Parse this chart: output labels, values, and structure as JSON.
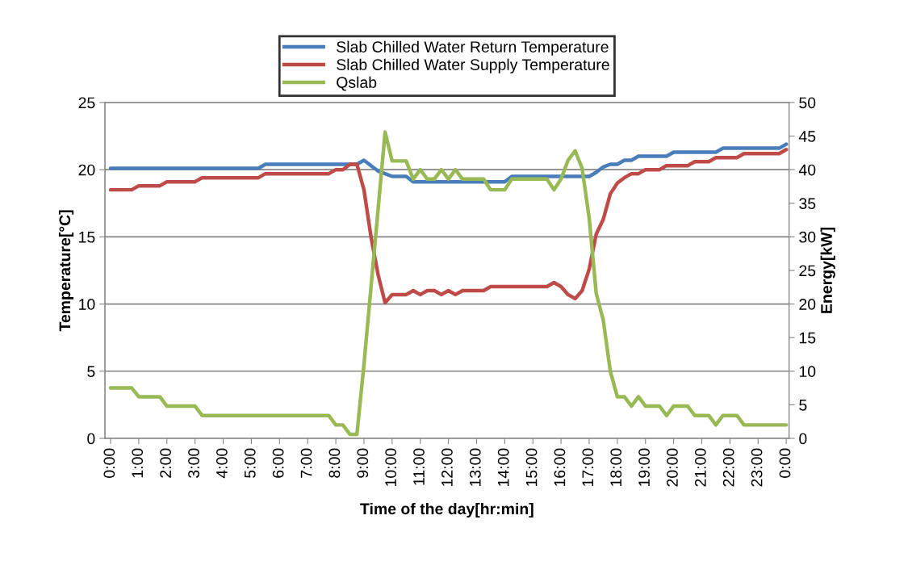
{
  "chart_data": {
    "type": "line",
    "xlabel": "Time of the day[hr:min]",
    "ylabel": "Temperature[°C]",
    "y2label": "Energy[kW]",
    "x": [
      0,
      0.25,
      0.5,
      0.75,
      1,
      1.25,
      1.5,
      1.75,
      2,
      2.25,
      2.5,
      2.75,
      3,
      3.25,
      3.5,
      3.75,
      4,
      4.25,
      4.5,
      4.75,
      5,
      5.25,
      5.5,
      5.75,
      6,
      6.25,
      6.5,
      6.75,
      7,
      7.25,
      7.5,
      7.75,
      8,
      8.25,
      8.5,
      8.75,
      9,
      9.25,
      9.5,
      9.75,
      10,
      10.25,
      10.5,
      10.75,
      11,
      11.25,
      11.5,
      11.75,
      12,
      12.25,
      12.5,
      12.75,
      13,
      13.25,
      13.5,
      13.75,
      14,
      14.25,
      14.5,
      14.75,
      15,
      15.25,
      15.5,
      15.75,
      16,
      16.25,
      16.5,
      16.75,
      17,
      17.25,
      17.5,
      17.75,
      18,
      18.25,
      18.5,
      18.75,
      19,
      19.25,
      19.5,
      19.75,
      20,
      20.25,
      20.5,
      20.75,
      21,
      21.25,
      21.5,
      21.75,
      22,
      22.25,
      22.5,
      22.75,
      23,
      23.25,
      23.5,
      23.75,
      24
    ],
    "series": [
      {
        "name": "Slab Chilled Water Return Temperature",
        "color": "#4a7ebb",
        "values": [
          20.1,
          20.1,
          20.1,
          20.1,
          20.1,
          20.1,
          20.1,
          20.1,
          20.1,
          20.1,
          20.1,
          20.1,
          20.1,
          20.1,
          20.1,
          20.1,
          20.1,
          20.1,
          20.1,
          20.1,
          20.1,
          20.1,
          20.4,
          20.4,
          20.4,
          20.4,
          20.4,
          20.4,
          20.4,
          20.4,
          20.4,
          20.4,
          20.4,
          20.4,
          20.4,
          20.4,
          20.7,
          20.3,
          19.9,
          19.7,
          19.5,
          19.5,
          19.5,
          19.1,
          19.1,
          19.1,
          19.1,
          19.1,
          19.1,
          19.1,
          19.1,
          19.1,
          19.1,
          19.1,
          19.1,
          19.1,
          19.1,
          19.5,
          19.5,
          19.5,
          19.5,
          19.5,
          19.5,
          19.5,
          19.5,
          19.5,
          19.5,
          19.5,
          19.5,
          19.8,
          20.2,
          20.4,
          20.4,
          20.7,
          20.7,
          21.0,
          21.0,
          21.0,
          21.0,
          21.0,
          21.3,
          21.3,
          21.3,
          21.3,
          21.3,
          21.3,
          21.3,
          21.6,
          21.6,
          21.6,
          21.6,
          21.6,
          21.6,
          21.6,
          21.6,
          21.6,
          21.9
        ]
      },
      {
        "name": "Slab Chilled Water Supply Temperature",
        "color": "#be4b48",
        "values": [
          18.5,
          18.5,
          18.5,
          18.5,
          18.8,
          18.8,
          18.8,
          18.8,
          19.1,
          19.1,
          19.1,
          19.1,
          19.1,
          19.4,
          19.4,
          19.4,
          19.4,
          19.4,
          19.4,
          19.4,
          19.4,
          19.4,
          19.7,
          19.7,
          19.7,
          19.7,
          19.7,
          19.7,
          19.7,
          19.7,
          19.7,
          19.7,
          20.0,
          20.0,
          20.4,
          20.4,
          18.5,
          15.0,
          12.2,
          10.1,
          10.7,
          10.7,
          10.7,
          11.0,
          10.7,
          11.0,
          11.0,
          10.7,
          11.0,
          10.7,
          11.0,
          11.0,
          11.0,
          11.0,
          11.3,
          11.3,
          11.3,
          11.3,
          11.3,
          11.3,
          11.3,
          11.3,
          11.3,
          11.6,
          11.3,
          10.7,
          10.4,
          11.0,
          12.6,
          15.2,
          16.3,
          18.2,
          19.0,
          19.4,
          19.7,
          19.7,
          20.0,
          20.0,
          20.0,
          20.3,
          20.3,
          20.3,
          20.3,
          20.6,
          20.6,
          20.6,
          20.9,
          20.9,
          20.9,
          20.9,
          21.2,
          21.2,
          21.2,
          21.2,
          21.2,
          21.2,
          21.5
        ]
      },
      {
        "name": "Qslab",
        "color": "#98b954",
        "axis": "y2",
        "values": [
          7.5,
          7.5,
          7.5,
          7.5,
          6.2,
          6.2,
          6.2,
          6.2,
          4.8,
          4.8,
          4.8,
          4.8,
          4.8,
          3.4,
          3.4,
          3.4,
          3.4,
          3.4,
          3.4,
          3.4,
          3.4,
          3.4,
          3.4,
          3.4,
          3.4,
          3.4,
          3.4,
          3.4,
          3.4,
          3.4,
          3.4,
          3.4,
          2.0,
          2.0,
          0.6,
          0.6,
          11,
          22.5,
          34,
          45.6,
          41.3,
          41.3,
          41.3,
          38.6,
          40.0,
          38.6,
          38.6,
          40.0,
          38.6,
          40.0,
          38.6,
          38.6,
          38.6,
          38.6,
          37.0,
          37.0,
          37.0,
          38.6,
          38.6,
          38.6,
          38.6,
          38.6,
          38.6,
          37.0,
          38.6,
          41.4,
          42.8,
          40.2,
          32.8,
          21.6,
          17.6,
          10.0,
          6.2,
          6.2,
          4.8,
          6.2,
          4.8,
          4.8,
          4.8,
          3.4,
          4.8,
          4.8,
          4.8,
          3.4,
          3.4,
          3.4,
          2.0,
          3.4,
          3.4,
          3.4,
          2.0,
          2.0,
          2.0,
          2.0,
          2.0,
          2.0,
          2.0
        ]
      }
    ],
    "xlim": [
      -0.2,
      24.1
    ],
    "xticks": [
      {
        "value": 0,
        "label": "0:00"
      },
      {
        "value": 1,
        "label": "1:00"
      },
      {
        "value": 2,
        "label": "2:00"
      },
      {
        "value": 3,
        "label": "3:00"
      },
      {
        "value": 4,
        "label": "4:00"
      },
      {
        "value": 5,
        "label": "5:00"
      },
      {
        "value": 6,
        "label": "6:00"
      },
      {
        "value": 7,
        "label": "7:00"
      },
      {
        "value": 8,
        "label": "8:00"
      },
      {
        "value": 9,
        "label": "9:00"
      },
      {
        "value": 10,
        "label": "10:00"
      },
      {
        "value": 11,
        "label": "11:00"
      },
      {
        "value": 12,
        "label": "12:00"
      },
      {
        "value": 13,
        "label": "13:00"
      },
      {
        "value": 14,
        "label": "14:00"
      },
      {
        "value": 15,
        "label": "15:00"
      },
      {
        "value": 16,
        "label": "16:00"
      },
      {
        "value": 17,
        "label": "17:00"
      },
      {
        "value": 18,
        "label": "18:00"
      },
      {
        "value": 19,
        "label": "19:00"
      },
      {
        "value": 20,
        "label": "20:00"
      },
      {
        "value": 21,
        "label": "21:00"
      },
      {
        "value": 22,
        "label": "22:00"
      },
      {
        "value": 23,
        "label": "23:00"
      },
      {
        "value": 24,
        "label": "0:00"
      }
    ],
    "ylim": [
      0,
      25
    ],
    "yticks": [
      0,
      5,
      10,
      15,
      20,
      25
    ],
    "y2lim": [
      0,
      50
    ],
    "y2ticks": [
      0,
      5,
      10,
      15,
      20,
      25,
      30,
      35,
      40,
      45,
      50
    ],
    "grid": "y",
    "legend": "top",
    "marker": "none",
    "line_style": "solid"
  }
}
